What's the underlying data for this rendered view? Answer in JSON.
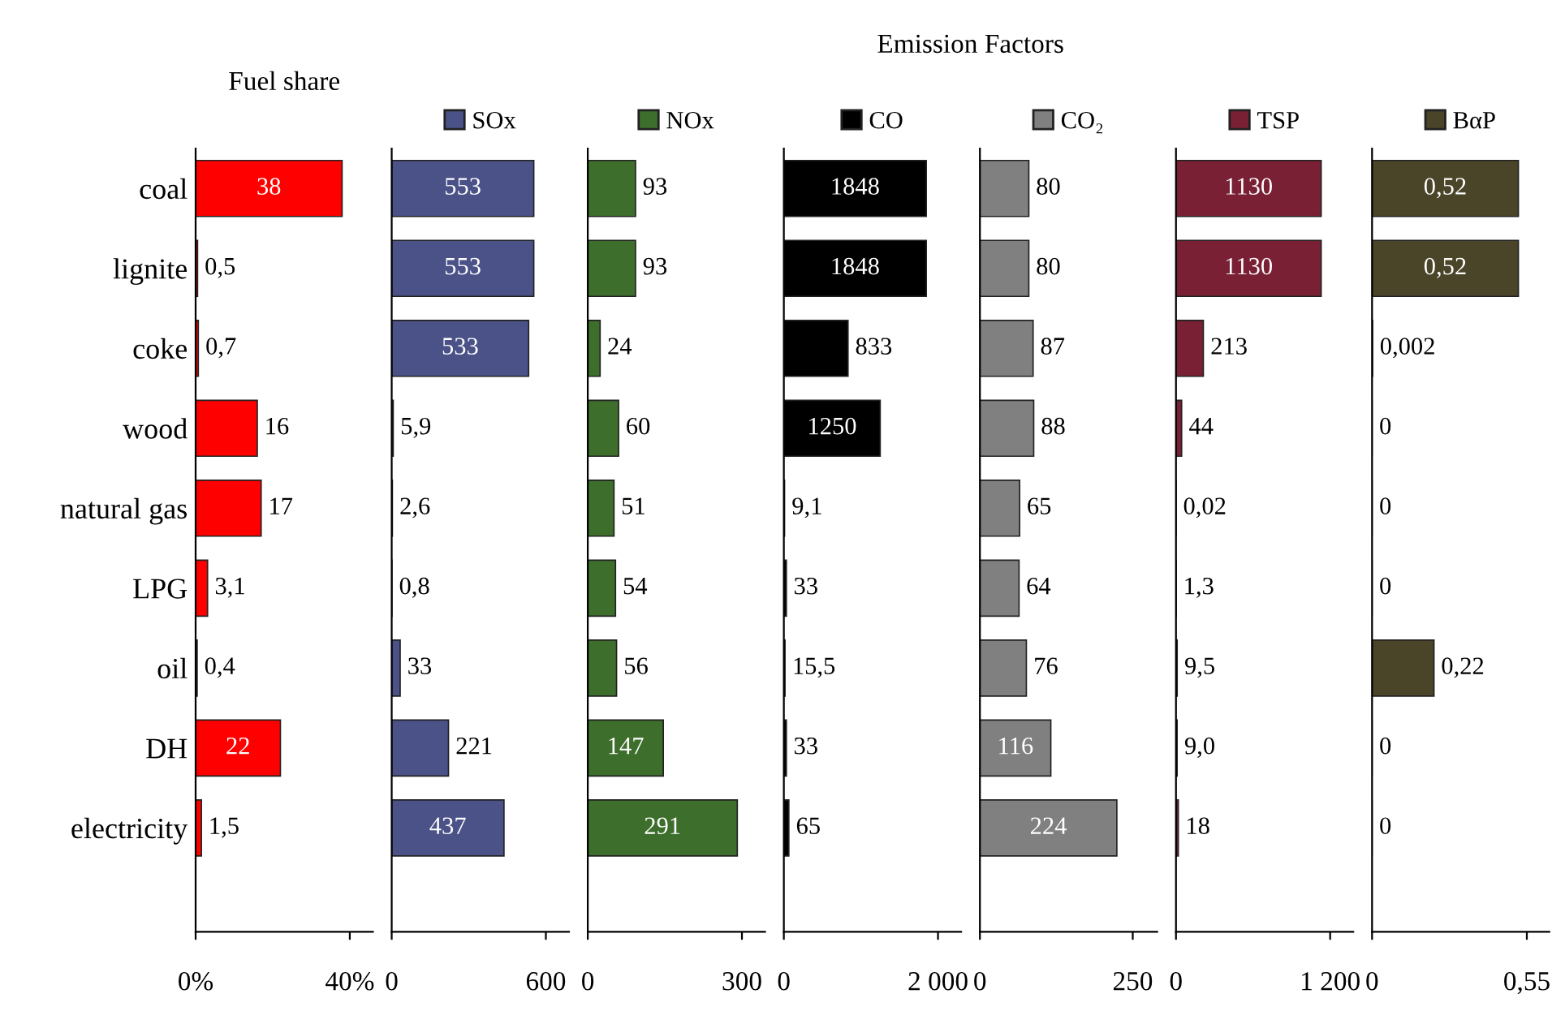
{
  "chart_data": [
    {
      "type": "bar",
      "orientation": "horizontal",
      "title": "Fuel share",
      "categories": [
        "coal",
        "lignite",
        "coke",
        "wood",
        "natural gas",
        "LPG",
        "oil",
        "DH",
        "electricity"
      ],
      "xlim": [
        0,
        46
      ],
      "xticks": [
        {
          "value": 0,
          "label": "0%"
        },
        {
          "value": 40,
          "label": "40%"
        }
      ],
      "series": [
        {
          "color": "#ff0000",
          "values": [
            38,
            0.5,
            0.7,
            16,
            17,
            3.1,
            0.4,
            22,
            1.5
          ],
          "value_labels": [
            "38",
            "0,5",
            "0,7",
            "16",
            "17",
            "3,1",
            "0,4",
            "22",
            "1,5"
          ]
        }
      ]
    },
    {
      "type": "bar",
      "orientation": "horizontal",
      "annotations": [
        "Emission Factors"
      ],
      "tick_labels": "x",
      "legend": "top",
      "xlim": [
        0,
        690
      ],
      "xticks": [
        0,
        600
      ],
      "series": [
        {
          "name": "SOx",
          "color": "#4b5288",
          "values": [
            553,
            553,
            533,
            5.9,
            2.6,
            0.8,
            33,
            221,
            437
          ],
          "value_labels": [
            "553",
            "553",
            "533",
            "5,9",
            "2,6",
            "0,8",
            "33",
            "221",
            "437"
          ]
        }
      ]
    },
    {
      "type": "bar",
      "orientation": "horizontal",
      "tick_labels": "x",
      "legend": "top",
      "xlim": [
        0,
        345
      ],
      "xticks": [
        0,
        300
      ],
      "series": [
        {
          "name": "NOx",
          "color": "#3d6e2b",
          "values": [
            93,
            93,
            24,
            60,
            51,
            54,
            56,
            147,
            291
          ],
          "value_labels": [
            "93",
            "93",
            "24",
            "60",
            "51",
            "54",
            "56",
            "147",
            "291"
          ]
        }
      ]
    },
    {
      "type": "bar",
      "orientation": "horizontal",
      "tick_labels": "x",
      "legend": "top",
      "xlim": [
        0,
        2300
      ],
      "xticks": [
        0,
        {
          "value": 2000,
          "label": "2 000"
        }
      ],
      "series": [
        {
          "name": "CO",
          "color": "#000000",
          "values": [
            1848,
            1848,
            833,
            1250,
            9.1,
            33,
            15.5,
            33,
            65
          ],
          "value_labels": [
            "1848",
            "1848",
            "833",
            "1250",
            "9,1",
            "33",
            "15,5",
            "33",
            "65"
          ]
        }
      ]
    },
    {
      "type": "bar",
      "orientation": "horizontal",
      "tick_labels": "x",
      "legend": "top",
      "xlim": [
        0,
        290
      ],
      "xticks": [
        0,
        250
      ],
      "series": [
        {
          "name": "CO₂",
          "color": "#808080",
          "values": [
            80,
            80,
            87,
            88,
            65,
            64,
            76,
            116,
            224
          ],
          "value_labels": [
            "80",
            "80",
            "87",
            "88",
            "65",
            "64",
            "76",
            "116",
            "224"
          ]
        }
      ]
    },
    {
      "type": "bar",
      "orientation": "horizontal",
      "tick_labels": "x",
      "legend": "top",
      "xlim": [
        0,
        1380
      ],
      "xticks": [
        0,
        {
          "value": 1200,
          "label": "1 200"
        }
      ],
      "series": [
        {
          "name": "TSP",
          "color": "#7a2035",
          "values": [
            1130,
            1130,
            213,
            44,
            0.02,
            1.3,
            9.5,
            9.0,
            18
          ],
          "value_labels": [
            "1130",
            "1130",
            "213",
            "44",
            "0,02",
            "1,3",
            "9,5",
            "9,0",
            "18"
          ]
        }
      ]
    },
    {
      "type": "bar",
      "orientation": "horizontal",
      "tick_labels": "x",
      "legend": "top",
      "xlim": [
        0,
        0.63
      ],
      "xticks": [
        0,
        {
          "value": 0.55,
          "label": "0,55"
        }
      ],
      "series": [
        {
          "name": "BαP",
          "color": "#4a4528",
          "values": [
            0.52,
            0.52,
            0.002,
            0,
            0,
            0,
            0.22,
            0,
            0
          ],
          "value_labels": [
            "0,52",
            "0,52",
            "0,002",
            "0",
            "0",
            "0",
            "0,22",
            "0",
            "0"
          ]
        }
      ]
    }
  ]
}
